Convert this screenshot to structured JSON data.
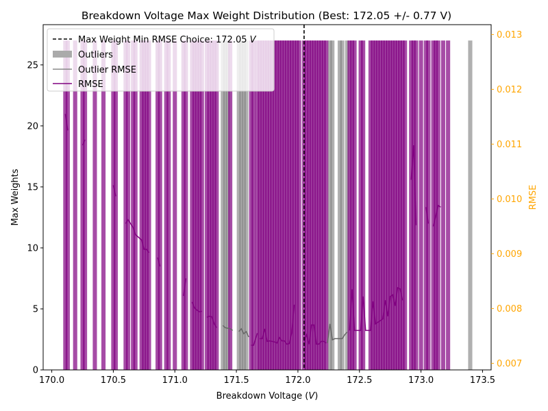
{
  "chart_data": {
    "type": "bar",
    "title": "Breakdown Voltage Max Weight Distribution (Best: 172.05 +/- 0.77 V)",
    "xlabel": "Breakdown Voltage (V)",
    "ylabel": "Max Weights",
    "y2label": "RMSE",
    "xlim": [
      169.93,
      173.57
    ],
    "ylim": [
      0,
      28.3
    ],
    "y2lim": [
      0.00688,
      0.01318
    ],
    "xticks": [
      "170.0",
      "170.5",
      "171.0",
      "171.5",
      "172.0",
      "172.5",
      "173.0",
      "173.5"
    ],
    "yticks": [
      "0",
      "5",
      "10",
      "15",
      "20",
      "25"
    ],
    "y2ticks": [
      "0.007",
      "0.008",
      "0.009",
      "0.010",
      "0.011",
      "0.012",
      "0.013"
    ],
    "best_voltage": 172.05,
    "bar_height": 27,
    "bar_width": 0.034,
    "weight_bars": [
      170.11,
      170.13,
      170.19,
      170.25,
      170.27,
      170.35,
      170.42,
      170.5,
      170.52,
      170.6,
      170.62,
      170.66,
      170.68,
      170.73,
      170.75,
      170.77,
      170.79,
      170.86,
      170.88,
      170.93,
      170.95,
      171.0,
      171.07,
      171.09,
      171.14,
      171.16,
      171.18,
      171.2,
      171.22,
      171.26,
      171.28,
      171.3,
      171.32,
      171.34,
      171.45,
      171.62,
      171.64,
      171.67,
      171.69,
      171.71,
      171.73,
      171.75,
      171.77,
      171.79,
      171.81,
      171.83,
      171.85,
      171.87,
      171.89,
      171.91,
      171.93,
      171.95,
      171.97,
      171.99,
      172.01,
      172.05,
      172.07,
      172.09,
      172.11,
      172.13,
      172.15,
      172.17,
      172.19,
      172.21,
      172.23,
      172.42,
      172.44,
      172.46,
      172.51,
      172.53,
      172.59,
      172.61,
      172.63,
      172.65,
      172.67,
      172.69,
      172.71,
      172.73,
      172.75,
      172.77,
      172.79,
      172.81,
      172.83,
      172.85,
      172.87,
      172.92,
      172.94,
      172.96,
      173.0,
      173.04,
      173.06,
      173.1,
      173.12,
      173.14,
      173.18,
      173.22
    ],
    "outlier_bars": [
      171.39,
      171.41,
      171.43,
      171.52,
      171.54,
      171.56,
      171.58,
      172.26,
      172.28,
      172.34,
      172.36,
      172.4,
      173.4
    ],
    "rmse_segments": [
      [
        [
          170.11,
          0.01155
        ],
        [
          170.13,
          0.01125
        ]
      ],
      [
        [
          170.25,
          0.01098
        ],
        [
          170.27,
          0.01108
        ]
      ],
      [
        [
          170.5,
          0.01025
        ],
        [
          170.52,
          0.01005
        ]
      ],
      [
        [
          170.6,
          0.00955
        ],
        [
          170.62,
          0.00962
        ],
        [
          170.66,
          0.00948
        ],
        [
          170.68,
          0.00935
        ],
        [
          170.73,
          0.00925
        ],
        [
          170.75,
          0.00908
        ],
        [
          170.77,
          0.00908
        ],
        [
          170.79,
          0.00902
        ]
      ],
      [
        [
          170.86,
          0.00893
        ],
        [
          170.88,
          0.00877
        ]
      ],
      [
        [
          171.07,
          0.00823
        ],
        [
          171.09,
          0.00855
        ]
      ],
      [
        [
          171.14,
          0.00812
        ],
        [
          171.16,
          0.00801
        ],
        [
          171.18,
          0.00797
        ],
        [
          171.2,
          0.00794
        ],
        [
          171.22,
          0.00795
        ]
      ],
      [
        [
          171.26,
          0.00784
        ],
        [
          171.28,
          0.00786
        ],
        [
          171.3,
          0.00785
        ],
        [
          171.32,
          0.00772
        ],
        [
          171.34,
          0.00765
        ]
      ],
      [
        [
          171.62,
          0.00733
        ],
        [
          171.64,
          0.00733
        ],
        [
          171.67,
          0.00755
        ]
      ],
      [
        [
          171.69,
          0.00745
        ],
        [
          171.71,
          0.00745
        ],
        [
          171.73,
          0.00763
        ],
        [
          171.75,
          0.0074
        ],
        [
          171.77,
          0.00741
        ],
        [
          171.79,
          0.0074
        ],
        [
          171.81,
          0.00739
        ],
        [
          171.83,
          0.00737
        ],
        [
          171.85,
          0.00747
        ],
        [
          171.87,
          0.00741
        ],
        [
          171.89,
          0.00741
        ],
        [
          171.91,
          0.00735
        ],
        [
          171.93,
          0.00736
        ],
        [
          171.95,
          0.00756
        ],
        [
          171.97,
          0.00807
        ]
      ],
      [
        [
          172.05,
          0.0074
        ],
        [
          172.07,
          0.00752
        ],
        [
          172.09,
          0.00735
        ],
        [
          172.11,
          0.0077
        ],
        [
          172.13,
          0.0077
        ],
        [
          172.15,
          0.00735
        ],
        [
          172.17,
          0.00735
        ],
        [
          172.19,
          0.0074
        ],
        [
          172.21,
          0.0074
        ],
        [
          172.23,
          0.00737
        ]
      ],
      [
        [
          172.42,
          0.0076
        ],
        [
          172.44,
          0.00835
        ],
        [
          172.46,
          0.0076
        ],
        [
          172.51,
          0.0076
        ],
        [
          172.53,
          0.00822
        ],
        [
          172.55,
          0.0076
        ],
        [
          172.59,
          0.0076
        ],
        [
          172.61,
          0.00813
        ],
        [
          172.63,
          0.00772
        ],
        [
          172.65,
          0.00775
        ],
        [
          172.67,
          0.00778
        ],
        [
          172.69,
          0.00781
        ],
        [
          172.71,
          0.00815
        ],
        [
          172.73,
          0.00786
        ],
        [
          172.75,
          0.00822
        ],
        [
          172.77,
          0.00825
        ],
        [
          172.79,
          0.00805
        ],
        [
          172.81,
          0.00838
        ],
        [
          172.83,
          0.00836
        ],
        [
          172.85,
          0.00815
        ]
      ],
      [
        [
          172.92,
          0.01035
        ],
        [
          172.94,
          0.01098
        ],
        [
          172.96,
          0.00952
        ]
      ],
      [
        [
          173.04,
          0.00985
        ],
        [
          173.06,
          0.00955
        ]
      ],
      [
        [
          173.1,
          0.0095
        ],
        [
          173.14,
          0.00988
        ],
        [
          173.16,
          0.00985
        ]
      ]
    ],
    "outlier_rmse_segments": [
      [
        [
          171.39,
          0.00769
        ],
        [
          171.41,
          0.00765
        ],
        [
          171.45,
          0.00763
        ],
        [
          171.47,
          0.0076
        ]
      ],
      [
        [
          171.52,
          0.00758
        ],
        [
          171.54,
          0.00763
        ],
        [
          171.56,
          0.00754
        ],
        [
          171.58,
          0.00758
        ],
        [
          171.6,
          0.00748
        ]
      ],
      [
        [
          172.24,
          0.00737
        ],
        [
          172.26,
          0.00772
        ],
        [
          172.28,
          0.00743
        ],
        [
          172.3,
          0.00745
        ],
        [
          172.34,
          0.00745
        ],
        [
          172.36,
          0.00745
        ],
        [
          172.38,
          0.00752
        ],
        [
          172.4,
          0.00757
        ]
      ]
    ],
    "legend": {
      "position": "upper-left",
      "entries": [
        {
          "label": "Max Weight Min RMSE Choice: 172.05 V",
          "style": "dashed-line",
          "color": "#000000"
        },
        {
          "label": "Outliers",
          "style": "patch",
          "color": "#aaaaaa"
        },
        {
          "label": "Outlier RMSE",
          "style": "line",
          "color": "#888888"
        },
        {
          "label": "RMSE",
          "style": "line",
          "color": "#800080"
        }
      ]
    },
    "colors": {
      "bars": "#800080",
      "outliers": "#808080",
      "rmse": "#800080",
      "outlier_rmse": "#666666",
      "right_axis": "#ffa500",
      "best_line": "#000000"
    },
    "grid": false
  }
}
